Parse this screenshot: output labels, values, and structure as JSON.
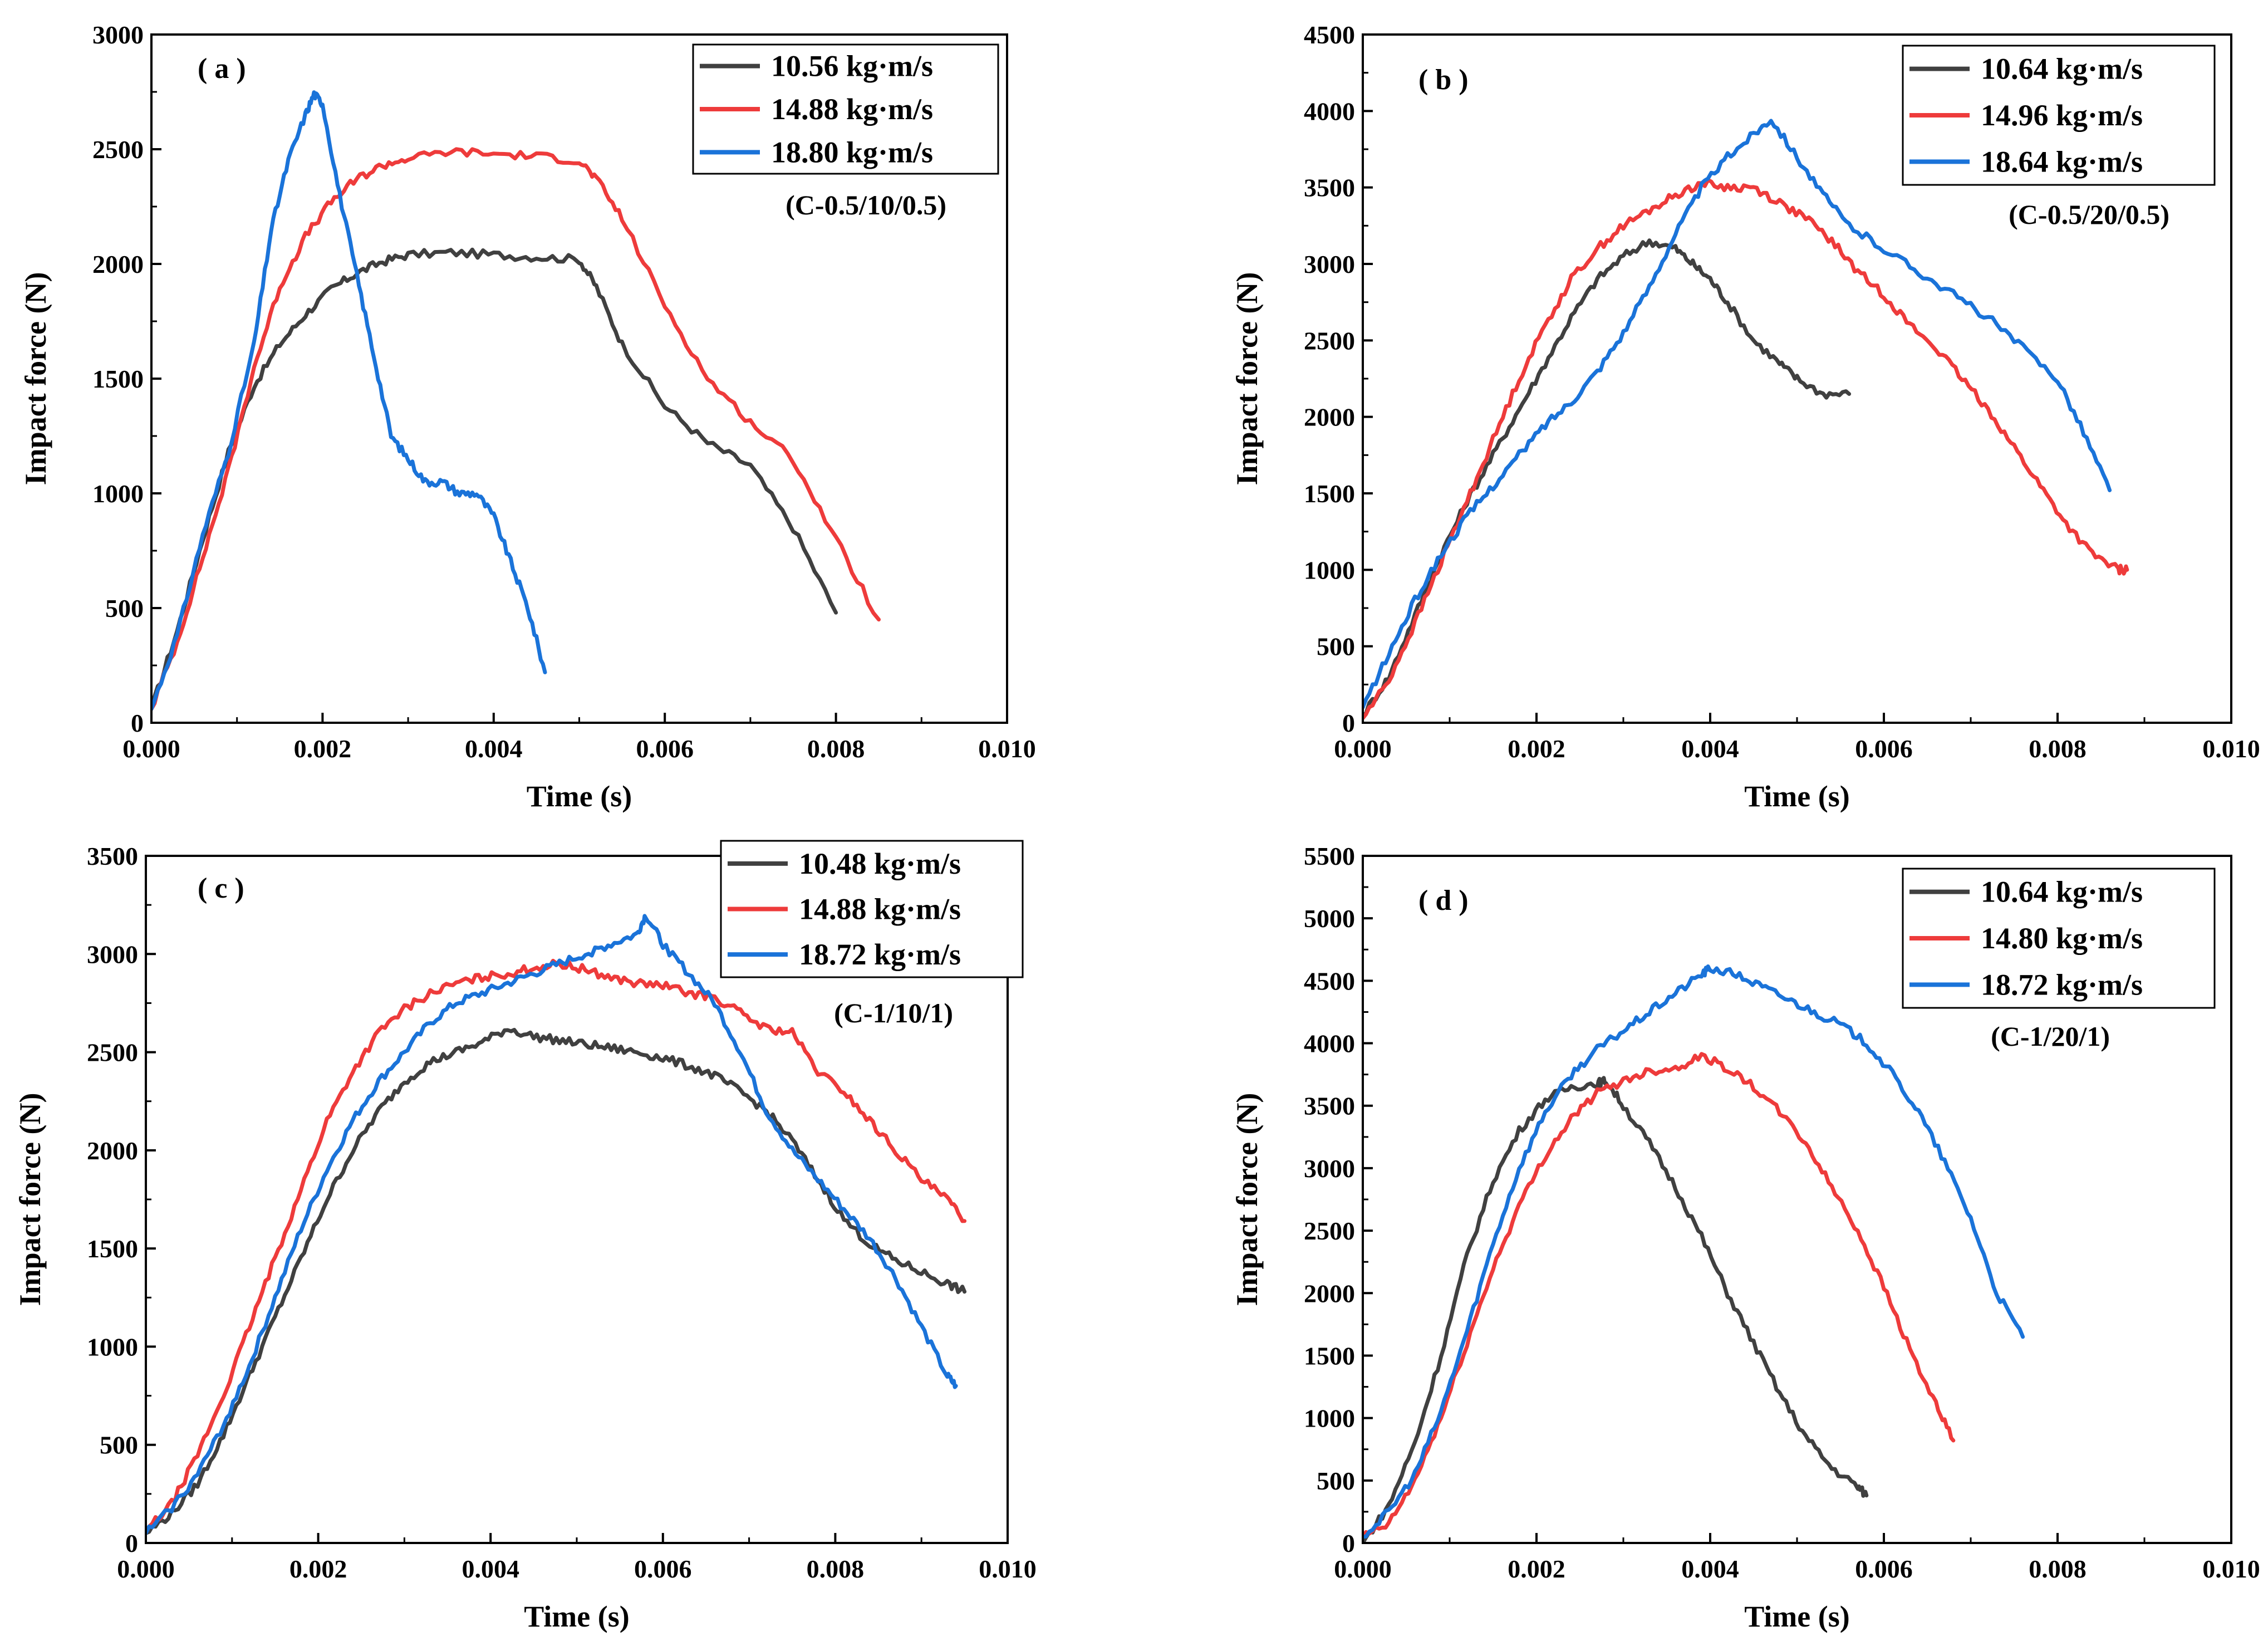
{
  "figure": {
    "series_colors": [
      "#404040",
      "#ee3b3b",
      "#1a73d9"
    ]
  },
  "chart_data": [
    {
      "type": "line",
      "panel_label": "( a )",
      "specimen": "(C-0.5/10/0.5)",
      "xlabel": "Time (s)",
      "ylabel": "Impact force (N)",
      "xlim": [
        0,
        0.01
      ],
      "ylim": [
        0,
        3000
      ],
      "xticks": [
        "0.000",
        "0.002",
        "0.004",
        "0.006",
        "0.008",
        "0.010"
      ],
      "yticks": [
        "0",
        "500",
        "1000",
        "1500",
        "2000",
        "2500",
        "3000"
      ],
      "legend_position": "top-right",
      "series": [
        {
          "name": "10.56  kg·m/s",
          "color": "#404040",
          "x": [
            0,
            0.0003,
            0.0006,
            0.0009,
            0.0012,
            0.0015,
            0.0018,
            0.0021,
            0.0024,
            0.0027,
            0.003,
            0.0035,
            0.004,
            0.0045,
            0.005,
            0.0052,
            0.0055,
            0.006,
            0.0065,
            0.007,
            0.0075,
            0.008
          ],
          "y": [
            60,
            400,
            800,
            1180,
            1470,
            1650,
            1780,
            1890,
            1960,
            2010,
            2040,
            2050,
            2040,
            2030,
            2020,
            1900,
            1650,
            1380,
            1220,
            1120,
            850,
            480
          ]
        },
        {
          "name": "14.88  kg·m/s",
          "color": "#ee3b3b",
          "x": [
            0,
            0.0003,
            0.0006,
            0.0009,
            0.0012,
            0.0015,
            0.0018,
            0.0021,
            0.0024,
            0.0027,
            0.003,
            0.0035,
            0.004,
            0.0045,
            0.005,
            0.0052,
            0.0055,
            0.006,
            0.0065,
            0.007,
            0.0075,
            0.008,
            0.0085
          ],
          "y": [
            60,
            350,
            720,
            1100,
            1550,
            1900,
            2120,
            2270,
            2370,
            2430,
            2460,
            2490,
            2480,
            2470,
            2450,
            2370,
            2200,
            1820,
            1500,
            1310,
            1150,
            800,
            450
          ]
        },
        {
          "name": "18.80  kg·m/s",
          "color": "#1a73d9",
          "x": [
            0,
            0.0003,
            0.0006,
            0.0009,
            0.0012,
            0.0014,
            0.0016,
            0.0018,
            0.0019,
            0.002,
            0.0022,
            0.0024,
            0.0026,
            0.0028,
            0.003,
            0.0032,
            0.0034,
            0.0036,
            0.0038,
            0.004,
            0.0042,
            0.0044,
            0.0046
          ],
          "y": [
            60,
            380,
            820,
            1180,
            1650,
            2150,
            2450,
            2650,
            2740,
            2700,
            2300,
            1950,
            1600,
            1250,
            1150,
            1050,
            1050,
            1000,
            1000,
            900,
            700,
            500,
            220
          ]
        }
      ]
    },
    {
      "type": "line",
      "panel_label": "( b )",
      "specimen": "(C-0.5/20/0.5)",
      "xlabel": "Time (s)",
      "ylabel": "Impact force (N)",
      "xlim": [
        0,
        0.01
      ],
      "ylim": [
        0,
        4500
      ],
      "xticks": [
        "0.000",
        "0.002",
        "0.004",
        "0.006",
        "0.008",
        "0.010"
      ],
      "yticks": [
        "0",
        "500",
        "1000",
        "1500",
        "2000",
        "2500",
        "3000",
        "3500",
        "4000",
        "4500"
      ],
      "legend_position": "top-right",
      "series": [
        {
          "name": "10.64  kg·m/s",
          "color": "#404040",
          "x": [
            0,
            0.0003,
            0.0006,
            0.0009,
            0.0012,
            0.0015,
            0.0018,
            0.0021,
            0.0024,
            0.0027,
            0.003,
            0.0033,
            0.0036,
            0.0038,
            0.004,
            0.0042,
            0.0045,
            0.0048,
            0.005,
            0.0053,
            0.0056
          ],
          "y": [
            50,
            300,
            700,
            1100,
            1450,
            1750,
            2050,
            2350,
            2650,
            2900,
            3050,
            3150,
            3100,
            3000,
            2900,
            2750,
            2500,
            2350,
            2250,
            2150,
            2150
          ]
        },
        {
          "name": "14.96  kg·m/s",
          "color": "#ee3b3b",
          "x": [
            0,
            0.0003,
            0.0006,
            0.0009,
            0.0012,
            0.0015,
            0.0018,
            0.0021,
            0.0024,
            0.0027,
            0.003,
            0.0033,
            0.0036,
            0.0039,
            0.0042,
            0.0045,
            0.0048,
            0.0051,
            0.0054,
            0.0057,
            0.006,
            0.0063,
            0.0066,
            0.0069,
            0.0072,
            0.0075,
            0.0078,
            0.0081,
            0.0084,
            0.0087,
            0.0088
          ],
          "y": [
            30,
            280,
            650,
            1050,
            1450,
            1850,
            2250,
            2600,
            2900,
            3100,
            3250,
            3350,
            3450,
            3530,
            3500,
            3500,
            3400,
            3300,
            3150,
            2950,
            2800,
            2600,
            2450,
            2250,
            2050,
            1800,
            1550,
            1300,
            1100,
            1000,
            1000
          ]
        },
        {
          "name": "18.64  kg·m/s",
          "color": "#1a73d9",
          "x": [
            0,
            0.0003,
            0.0006,
            0.0009,
            0.0012,
            0.0015,
            0.0018,
            0.0021,
            0.0024,
            0.0027,
            0.003,
            0.0033,
            0.0036,
            0.0039,
            0.0042,
            0.0045,
            0.0047,
            0.005,
            0.0053,
            0.0056,
            0.006,
            0.0064,
            0.0068,
            0.0072,
            0.0076,
            0.008,
            0.0083,
            0.0086
          ],
          "y": [
            100,
            450,
            800,
            1100,
            1350,
            1550,
            1750,
            1950,
            2100,
            2300,
            2550,
            2850,
            3200,
            3500,
            3700,
            3850,
            3950,
            3700,
            3450,
            3250,
            3100,
            2950,
            2800,
            2650,
            2450,
            2250,
            1900,
            1520
          ]
        }
      ]
    },
    {
      "type": "line",
      "panel_label": "( c )",
      "specimen": "(C-1/10/1)",
      "xlabel": "Time (s)",
      "ylabel": "Impact force (N)",
      "xlim": [
        0,
        0.01
      ],
      "ylim": [
        0,
        3500
      ],
      "xticks": [
        "0.000",
        "0.002",
        "0.004",
        "0.006",
        "0.008",
        "0.010"
      ],
      "yticks": [
        "0",
        "500",
        "1000",
        "1500",
        "2000",
        "2500",
        "3000",
        "3500"
      ],
      "legend_position": "top-right",
      "series": [
        {
          "name": "10.48  kg·m/s",
          "color": "#404040",
          "x": [
            0,
            0.0003,
            0.0006,
            0.0009,
            0.0012,
            0.0015,
            0.0018,
            0.0021,
            0.0024,
            0.0027,
            0.003,
            0.0033,
            0.0036,
            0.0039,
            0.0042,
            0.0045,
            0.0048,
            0.0051,
            0.0054,
            0.0057,
            0.006,
            0.0063,
            0.0066,
            0.0069,
            0.0072,
            0.0075,
            0.0078,
            0.0081,
            0.0084,
            0.0087,
            0.009,
            0.0093,
            0.0095
          ],
          "y": [
            50,
            150,
            300,
            550,
            850,
            1150,
            1450,
            1750,
            2000,
            2200,
            2350,
            2450,
            2500,
            2550,
            2620,
            2580,
            2560,
            2540,
            2520,
            2500,
            2470,
            2430,
            2380,
            2300,
            2200,
            2050,
            1850,
            1650,
            1520,
            1440,
            1380,
            1320,
            1280
          ]
        },
        {
          "name": "14.88  kg·m/s",
          "color": "#ee3b3b",
          "x": [
            0,
            0.0003,
            0.0006,
            0.0009,
            0.0012,
            0.0015,
            0.0018,
            0.0021,
            0.0024,
            0.0027,
            0.003,
            0.0033,
            0.0036,
            0.0039,
            0.0042,
            0.0045,
            0.0048,
            0.0051,
            0.0054,
            0.0057,
            0.006,
            0.0063,
            0.0066,
            0.0069,
            0.0072,
            0.0075,
            0.0078,
            0.0081,
            0.0084,
            0.0087,
            0.009,
            0.0093,
            0.0095
          ],
          "y": [
            60,
            200,
            450,
            750,
            1100,
            1450,
            1800,
            2150,
            2400,
            2600,
            2720,
            2800,
            2850,
            2880,
            2900,
            2930,
            2950,
            2920,
            2880,
            2850,
            2840,
            2800,
            2780,
            2700,
            2620,
            2600,
            2400,
            2300,
            2150,
            2000,
            1850,
            1750,
            1640
          ]
        },
        {
          "name": "18.72  kg·m/s",
          "color": "#1a73d9",
          "x": [
            0,
            0.0003,
            0.0006,
            0.0009,
            0.0012,
            0.0015,
            0.0018,
            0.0021,
            0.0024,
            0.0027,
            0.003,
            0.0033,
            0.0036,
            0.0039,
            0.0042,
            0.0045,
            0.0048,
            0.0051,
            0.0054,
            0.0057,
            0.0058,
            0.006,
            0.0063,
            0.0066,
            0.0069,
            0.0072,
            0.0075,
            0.0078,
            0.0081,
            0.0084,
            0.0087,
            0.009,
            0.0093,
            0.0094
          ],
          "y": [
            50,
            180,
            350,
            600,
            900,
            1250,
            1600,
            1900,
            2150,
            2350,
            2500,
            2650,
            2750,
            2800,
            2850,
            2900,
            2950,
            3000,
            3050,
            3100,
            3200,
            3050,
            2900,
            2750,
            2500,
            2200,
            2000,
            1850,
            1700,
            1550,
            1350,
            1100,
            850,
            800
          ]
        }
      ]
    },
    {
      "type": "line",
      "panel_label": "( d )",
      "specimen": "(C-1/20/1)",
      "xlabel": "Time (s)",
      "ylabel": "Impact force (N)",
      "xlim": [
        0,
        0.01
      ],
      "ylim": [
        0,
        5500
      ],
      "xticks": [
        "0.000",
        "0.002",
        "0.004",
        "0.006",
        "0.008",
        "0.010"
      ],
      "yticks": [
        "0",
        "500",
        "1000",
        "1500",
        "2000",
        "2500",
        "3000",
        "3500",
        "4000",
        "4500",
        "5000",
        "5500"
      ],
      "legend_position": "top-right",
      "series": [
        {
          "name": "10.64  kg·m/s",
          "color": "#404040",
          "x": [
            0,
            0.0003,
            0.0006,
            0.0009,
            0.0012,
            0.0015,
            0.0018,
            0.0021,
            0.0024,
            0.0027,
            0.0028,
            0.003,
            0.0033,
            0.0036,
            0.0039,
            0.0042,
            0.0045,
            0.0048,
            0.0051,
            0.0054,
            0.0057,
            0.0058
          ],
          "y": [
            0,
            300,
            800,
            1500,
            2300,
            2900,
            3300,
            3550,
            3650,
            3680,
            3700,
            3500,
            3200,
            2850,
            2450,
            2000,
            1600,
            1200,
            850,
            600,
            450,
            380
          ]
        },
        {
          "name": "14.80  kg·m/s",
          "color": "#ee3b3b",
          "x": [
            0,
            0.0003,
            0.0006,
            0.0009,
            0.0012,
            0.0015,
            0.0018,
            0.0021,
            0.0024,
            0.0027,
            0.003,
            0.0033,
            0.0036,
            0.0039,
            0.0042,
            0.0045,
            0.0048,
            0.0051,
            0.0054,
            0.0057,
            0.006,
            0.0063,
            0.0066,
            0.0068
          ],
          "y": [
            50,
            150,
            500,
            1000,
            1600,
            2200,
            2700,
            3100,
            3400,
            3600,
            3700,
            3780,
            3800,
            3900,
            3800,
            3650,
            3450,
            3200,
            2850,
            2500,
            2050,
            1550,
            1100,
            820
          ]
        },
        {
          "name": "18.72  kg·m/s",
          "color": "#1a73d9",
          "x": [
            0,
            0.0003,
            0.0006,
            0.0009,
            0.0012,
            0.0015,
            0.0018,
            0.0021,
            0.0024,
            0.0027,
            0.003,
            0.0033,
            0.0036,
            0.0039,
            0.004,
            0.0043,
            0.0046,
            0.0049,
            0.0052,
            0.0055,
            0.0058,
            0.0061,
            0.0064,
            0.0067,
            0.007,
            0.0073,
            0.0076
          ],
          "y": [
            50,
            250,
            550,
            1050,
            1700,
            2400,
            3000,
            3450,
            3750,
            3950,
            4100,
            4250,
            4400,
            4550,
            4600,
            4550,
            4450,
            4350,
            4250,
            4150,
            4000,
            3750,
            3450,
            3050,
            2600,
            2000,
            1650
          ]
        }
      ]
    }
  ]
}
